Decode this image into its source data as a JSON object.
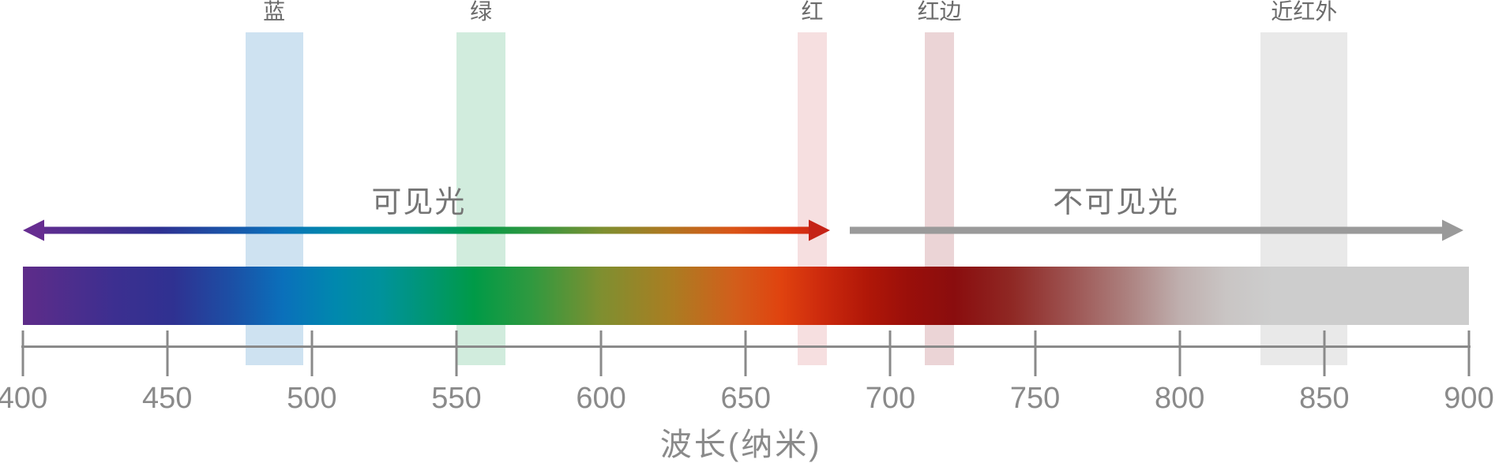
{
  "chart_data": {
    "type": "spectral-band-diagram",
    "title": "",
    "xlabel": "波长(纳米)",
    "axis": {
      "min": 400,
      "max": 900,
      "tick_step": 50,
      "unit": "纳米",
      "tick_labels": [
        "400",
        "450",
        "500",
        "550",
        "600",
        "650",
        "700",
        "750",
        "800",
        "850",
        "900"
      ]
    },
    "bands": [
      {
        "id": "blue",
        "label": "蓝",
        "nm_min": 477,
        "nm_max": 497,
        "fill": "rgba(10,112,187,0.20)"
      },
      {
        "id": "green",
        "label": "绿",
        "nm_min": 550,
        "nm_max": 567,
        "fill": "rgba(0,148,68,0.18)"
      },
      {
        "id": "red",
        "label": "红",
        "nm_min": 668,
        "nm_max": 678,
        "fill": "rgba(193,39,45,0.15)"
      },
      {
        "id": "red_edge",
        "label": "红边",
        "nm_min": 712,
        "nm_max": 722,
        "fill": "rgba(165,60,70,0.22)"
      },
      {
        "id": "nir",
        "label": "近红外",
        "nm_min": 828,
        "nm_max": 858,
        "fill": "rgba(0,0,0,0.085)"
      }
    ],
    "regions": [
      {
        "id": "visible",
        "label": "可见光",
        "nm_min": 400,
        "nm_max": 679,
        "label_at_nm": 537,
        "arrow_style": "double-headed-gradient",
        "gradient": [
          [
            "0%",
            "#662d91"
          ],
          [
            "10%",
            "#472e8f"
          ],
          [
            "17%",
            "#2e3192"
          ],
          [
            "25%",
            "#1b53a7"
          ],
          [
            "32%",
            "#0a70bb"
          ],
          [
            "40%",
            "#0090a6"
          ],
          [
            "48%",
            "#00958b"
          ],
          [
            "56%",
            "#009a47"
          ],
          [
            "64%",
            "#379740"
          ],
          [
            "72%",
            "#7f8f30"
          ],
          [
            "80%",
            "#b07721"
          ],
          [
            "88%",
            "#da5417"
          ],
          [
            "95%",
            "#dc330f"
          ],
          [
            "100%",
            "#c52317"
          ]
        ]
      },
      {
        "id": "invisible",
        "label": "不可见光",
        "nm_min": 686,
        "nm_max": 898,
        "label_at_nm": 778,
        "arrow_style": "right-headed-solid",
        "color": "#9a9a9a"
      }
    ],
    "spectrum_bar": {
      "nm_min": 400,
      "nm_max": 900,
      "gradient_stops": [
        [
          400,
          "#5e2c89"
        ],
        [
          432,
          "#3c2f90"
        ],
        [
          452,
          "#2f3191"
        ],
        [
          472,
          "#1c4fa5"
        ],
        [
          490,
          "#0a70bb"
        ],
        [
          508,
          "#0088ae"
        ],
        [
          524,
          "#00929b"
        ],
        [
          540,
          "#009673"
        ],
        [
          556,
          "#009a47"
        ],
        [
          576,
          "#30993f"
        ],
        [
          600,
          "#7f8f30"
        ],
        [
          624,
          "#aa7d22"
        ],
        [
          646,
          "#d25e1b"
        ],
        [
          662,
          "#e0430f"
        ],
        [
          676,
          "#cd2a0d"
        ],
        [
          692,
          "#b01708"
        ],
        [
          706,
          "#9a0f0a"
        ],
        [
          722,
          "#8a0d0e"
        ],
        [
          742,
          "#8f2824"
        ],
        [
          762,
          "#9d5351"
        ],
        [
          782,
          "#ac817f"
        ],
        [
          800,
          "#bfafae"
        ],
        [
          816,
          "#c9c5c4"
        ],
        [
          832,
          "#cdcdcd"
        ],
        [
          900,
          "#cdcdcd"
        ]
      ]
    }
  },
  "colors": {
    "background": "#ffffff",
    "band_label_text": "#6b6b6b",
    "region_label_text": "#757575",
    "axis": "#8a8a8a",
    "tick_label_text": "#8a8a8a",
    "axis_title_text": "#8a8a8a",
    "invisible_arrow": "#9a9a9a"
  }
}
